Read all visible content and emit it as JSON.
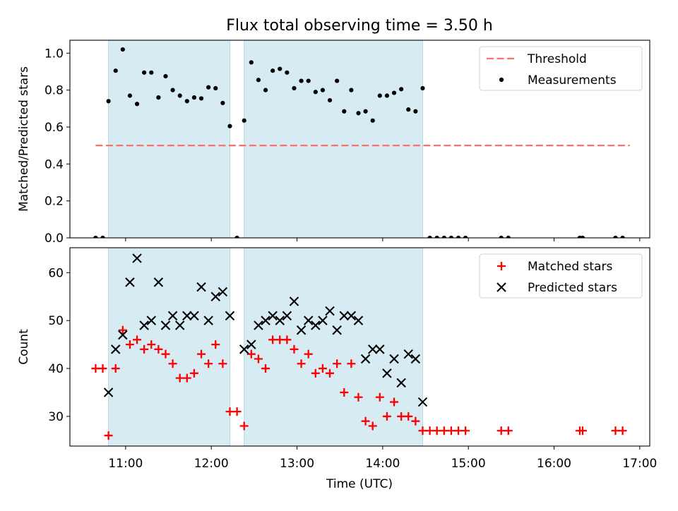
{
  "chart_data": [
    {
      "type": "scatter",
      "title": "Flux total observing time = 3.50 h",
      "xlabel": "",
      "ylabel": "Matched/Predicted stars",
      "xlim": [
        "10:21",
        "17:07"
      ],
      "ylim": [
        0.0,
        1.07
      ],
      "yticks": [
        0.0,
        0.2,
        0.4,
        0.6,
        0.8,
        1.0
      ],
      "ytick_labels": [
        "0.0",
        "0.2",
        "0.4",
        "0.6",
        "0.8",
        "1.0"
      ],
      "xticks": [
        "11:00",
        "12:00",
        "13:00",
        "14:00",
        "15:00",
        "16:00",
        "17:00"
      ],
      "grid": false,
      "legend_position": "top-right",
      "legend": [
        "Threshold",
        "Measurements"
      ],
      "shaded_intervals": [
        [
          "10:48",
          "12:13"
        ],
        [
          "12:23",
          "14:28"
        ]
      ],
      "shaded_color": "#add8e6",
      "threshold": {
        "name": "Threshold",
        "y": 0.5,
        "x_range": [
          "10:39",
          "16:53"
        ],
        "color": "#ff6f6f"
      },
      "series": [
        {
          "name": "Measurements",
          "color": "#000000",
          "x": [
            "10:39",
            "10:44",
            "10:48",
            "10:53",
            "10:58",
            "11:03",
            "11:08",
            "11:13",
            "11:18",
            "11:23",
            "11:28",
            "11:33",
            "11:38",
            "11:43",
            "11:48",
            "11:53",
            "11:58",
            "12:03",
            "12:08",
            "12:13",
            "12:18",
            "12:23",
            "12:28",
            "12:33",
            "12:38",
            "12:43",
            "12:48",
            "12:53",
            "12:58",
            "13:03",
            "13:08",
            "13:13",
            "13:18",
            "13:23",
            "13:28",
            "13:33",
            "13:38",
            "13:43",
            "13:48",
            "13:53",
            "13:58",
            "14:03",
            "14:08",
            "14:13",
            "14:18",
            "14:23",
            "14:28",
            "14:33",
            "14:38",
            "14:43",
            "14:48",
            "14:53",
            "14:58",
            "15:23",
            "15:28",
            "16:18",
            "16:20",
            "16:43",
            "16:48"
          ],
          "y": [
            0.0,
            0.0,
            0.74,
            0.905,
            1.02,
            0.77,
            0.725,
            0.895,
            0.895,
            0.76,
            0.875,
            0.8,
            0.77,
            0.74,
            0.76,
            0.755,
            0.815,
            0.81,
            0.73,
            0.605,
            0.0,
            0.635,
            0.95,
            0.855,
            0.8,
            0.905,
            0.915,
            0.895,
            0.81,
            0.85,
            0.85,
            0.79,
            0.8,
            0.745,
            0.85,
            0.685,
            0.8,
            0.675,
            0.685,
            0.635,
            0.77,
            0.77,
            0.785,
            0.805,
            0.695,
            0.685,
            0.81,
            0.0,
            0.0,
            0.0,
            0.0,
            0.0,
            0.0,
            0.0,
            0.0,
            0.0,
            0.0,
            0.0,
            0.0
          ]
        }
      ]
    },
    {
      "type": "scatter",
      "title": "",
      "xlabel": "Time (UTC)",
      "ylabel": "Count",
      "xlim": [
        "10:21",
        "17:07"
      ],
      "ylim": [
        23.8,
        65.2
      ],
      "yticks": [
        30,
        40,
        50,
        60
      ],
      "ytick_labels": [
        "30",
        "40",
        "50",
        "60"
      ],
      "xticks": [
        "11:00",
        "12:00",
        "13:00",
        "14:00",
        "15:00",
        "16:00",
        "17:00"
      ],
      "grid": false,
      "legend_position": "top-right",
      "legend": [
        "Matched stars",
        "Predicted stars"
      ],
      "shaded_intervals": [
        [
          "10:48",
          "12:13"
        ],
        [
          "12:23",
          "14:28"
        ]
      ],
      "shaded_color": "#add8e6",
      "series": [
        {
          "name": "Matched stars",
          "marker": "+",
          "color": "#ff0000",
          "x": [
            "10:39",
            "10:44",
            "10:48",
            "10:53",
            "10:58",
            "11:03",
            "11:08",
            "11:13",
            "11:18",
            "11:23",
            "11:28",
            "11:33",
            "11:38",
            "11:43",
            "11:48",
            "11:53",
            "11:58",
            "12:03",
            "12:08",
            "12:13",
            "12:18",
            "12:23",
            "12:28",
            "12:33",
            "12:38",
            "12:43",
            "12:48",
            "12:53",
            "12:58",
            "13:03",
            "13:08",
            "13:13",
            "13:18",
            "13:23",
            "13:28",
            "13:33",
            "13:38",
            "13:43",
            "13:48",
            "13:53",
            "13:58",
            "14:03",
            "14:08",
            "14:13",
            "14:18",
            "14:23",
            "14:28",
            "14:33",
            "14:38",
            "14:43",
            "14:48",
            "14:53",
            "14:58",
            "15:23",
            "15:28",
            "16:18",
            "16:20",
            "16:43",
            "16:48"
          ],
          "y": [
            40,
            40,
            26,
            40,
            48,
            45,
            46,
            44,
            45,
            44,
            43,
            41,
            38,
            38,
            39,
            43,
            41,
            45,
            41,
            31,
            31,
            28,
            43,
            42,
            40,
            46,
            46,
            46,
            44,
            41,
            43,
            39,
            40,
            39,
            41,
            35,
            41,
            34,
            29,
            28,
            34,
            30,
            33,
            30,
            30,
            29,
            27,
            27,
            27,
            27,
            27,
            27,
            27,
            27,
            27,
            27,
            27,
            27,
            27
          ]
        },
        {
          "name": "Predicted stars",
          "marker": "x",
          "color": "#000000",
          "x": [
            "10:48",
            "10:53",
            "10:58",
            "11:03",
            "11:08",
            "11:13",
            "11:18",
            "11:23",
            "11:28",
            "11:33",
            "11:38",
            "11:43",
            "11:48",
            "11:53",
            "11:58",
            "12:03",
            "12:08",
            "12:13",
            "12:23",
            "12:28",
            "12:33",
            "12:38",
            "12:43",
            "12:48",
            "12:53",
            "12:58",
            "13:03",
            "13:08",
            "13:13",
            "13:18",
            "13:23",
            "13:28",
            "13:33",
            "13:38",
            "13:43",
            "13:48",
            "13:53",
            "13:58",
            "14:03",
            "14:08",
            "14:13",
            "14:18",
            "14:23",
            "14:28"
          ],
          "y": [
            35,
            44,
            47,
            58,
            63,
            49,
            50,
            58,
            49,
            51,
            49,
            51,
            51,
            57,
            50,
            55,
            56,
            51,
            44,
            45,
            49,
            50,
            51,
            50,
            51,
            54,
            48,
            50,
            49,
            50,
            52,
            48,
            51,
            51,
            50,
            42,
            44,
            44,
            39,
            42,
            37,
            43,
            42,
            33
          ]
        }
      ]
    }
  ]
}
